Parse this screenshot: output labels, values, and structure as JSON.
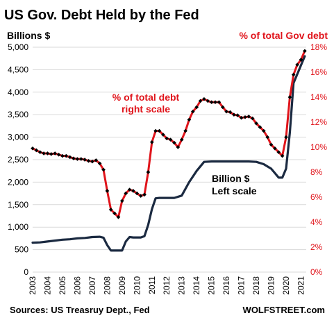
{
  "chart_data": {
    "type": "line",
    "title": "US Gov. Debt Held by the Fed",
    "left_axis_label": "Billions  $",
    "right_axis_label": "% of total Gov debt",
    "left_ylim": [
      0,
      5000
    ],
    "right_ylim": [
      0,
      18
    ],
    "left_ticks": [
      "0",
      "500",
      "1,000",
      "1,500",
      "2,000",
      "2,500",
      "3,000",
      "3,500",
      "4,000",
      "4,500",
      "5,000"
    ],
    "right_ticks": [
      "0%",
      "2%",
      "4%",
      "6%",
      "8%",
      "10%",
      "12%",
      "14%",
      "16%",
      "18%"
    ],
    "x_ticks": [
      "2003",
      "2004",
      "2005",
      "2006",
      "2007",
      "2008",
      "2009",
      "2010",
      "2011",
      "2012",
      "2013",
      "2014",
      "2015",
      "2016",
      "2017",
      "2018",
      "2019",
      "2020",
      "2021"
    ],
    "xlim": [
      2003,
      2021.35
    ],
    "grid": true,
    "annotations": {
      "pct_line1": "% of total debt",
      "pct_line2": "right scale",
      "bil_line1": "Billion $",
      "bil_line2": "Left scale"
    },
    "series": [
      {
        "color": "#1b2a41",
        "axis": "left",
        "x": [
          2003.0,
          2003.5,
          2004.0,
          2004.5,
          2005.0,
          2005.5,
          2006.0,
          2006.5,
          2007.0,
          2007.5,
          2007.75,
          2008.0,
          2008.25,
          2008.5,
          2008.75,
          2009.0,
          2009.25,
          2009.5,
          2009.75,
          2010.0,
          2010.25,
          2010.5,
          2010.75,
          2011.0,
          2011.25,
          2011.5,
          2011.75,
          2012.0,
          2012.5,
          2013.0,
          2013.5,
          2014.0,
          2014.5,
          2015.0,
          2015.5,
          2016.0,
          2016.5,
          2017.0,
          2017.5,
          2018.0,
          2018.5,
          2019.0,
          2019.25,
          2019.5,
          2019.75,
          2020.0,
          2020.25,
          2020.5,
          2020.75,
          2021.0,
          2021.25
        ],
        "values": [
          655,
          660,
          680,
          700,
          720,
          730,
          750,
          760,
          780,
          785,
          765,
          600,
          480,
          480,
          480,
          480,
          680,
          780,
          770,
          770,
          770,
          800,
          1050,
          1400,
          1640,
          1650,
          1650,
          1650,
          1650,
          1700,
          2000,
          2250,
          2450,
          2460,
          2460,
          2460,
          2460,
          2460,
          2460,
          2450,
          2400,
          2300,
          2200,
          2100,
          2100,
          2300,
          3100,
          4200,
          4400,
          4600,
          4800
        ]
      },
      {
        "color": "#e0141b",
        "axis": "right",
        "marker_color": "#000000",
        "x": [
          2003.0,
          2003.25,
          2003.5,
          2003.75,
          2004.0,
          2004.25,
          2004.5,
          2004.75,
          2005.0,
          2005.25,
          2005.5,
          2005.75,
          2006.0,
          2006.25,
          2006.5,
          2006.75,
          2007.0,
          2007.25,
          2007.5,
          2007.75,
          2008.0,
          2008.25,
          2008.5,
          2008.75,
          2009.0,
          2009.25,
          2009.5,
          2009.75,
          2010.0,
          2010.25,
          2010.5,
          2010.75,
          2011.0,
          2011.25,
          2011.5,
          2011.75,
          2012.0,
          2012.25,
          2012.5,
          2012.75,
          2013.0,
          2013.25,
          2013.5,
          2013.75,
          2014.0,
          2014.25,
          2014.5,
          2014.75,
          2015.0,
          2015.25,
          2015.5,
          2015.75,
          2016.0,
          2016.25,
          2016.5,
          2016.75,
          2017.0,
          2017.25,
          2017.5,
          2017.75,
          2018.0,
          2018.25,
          2018.5,
          2018.75,
          2019.0,
          2019.25,
          2019.5,
          2019.75,
          2020.0,
          2020.25,
          2020.5,
          2020.75,
          2021.0,
          2021.25
        ],
        "values": [
          9.9,
          9.75,
          9.6,
          9.5,
          9.5,
          9.45,
          9.5,
          9.4,
          9.3,
          9.3,
          9.2,
          9.1,
          9.05,
          9.05,
          9.0,
          8.9,
          8.85,
          8.95,
          8.7,
          8.2,
          6.5,
          5.0,
          4.7,
          4.4,
          5.7,
          6.3,
          6.6,
          6.5,
          6.3,
          6.1,
          6.2,
          8.0,
          10.4,
          11.3,
          11.3,
          11.0,
          10.7,
          10.6,
          10.35,
          10.0,
          10.6,
          11.3,
          12.2,
          12.85,
          13.2,
          13.7,
          13.85,
          13.7,
          13.6,
          13.6,
          13.6,
          13.2,
          12.85,
          12.8,
          12.6,
          12.55,
          12.35,
          12.4,
          12.45,
          12.3,
          11.9,
          11.6,
          11.3,
          10.8,
          10.2,
          9.9,
          9.6,
          9.3,
          10.8,
          14.0,
          15.8,
          16.6,
          17.0,
          17.7
        ]
      }
    ]
  },
  "footer": {
    "source": "Sources: US Treasruy Dept., Fed",
    "brand": "WOLFSTREET.com"
  }
}
